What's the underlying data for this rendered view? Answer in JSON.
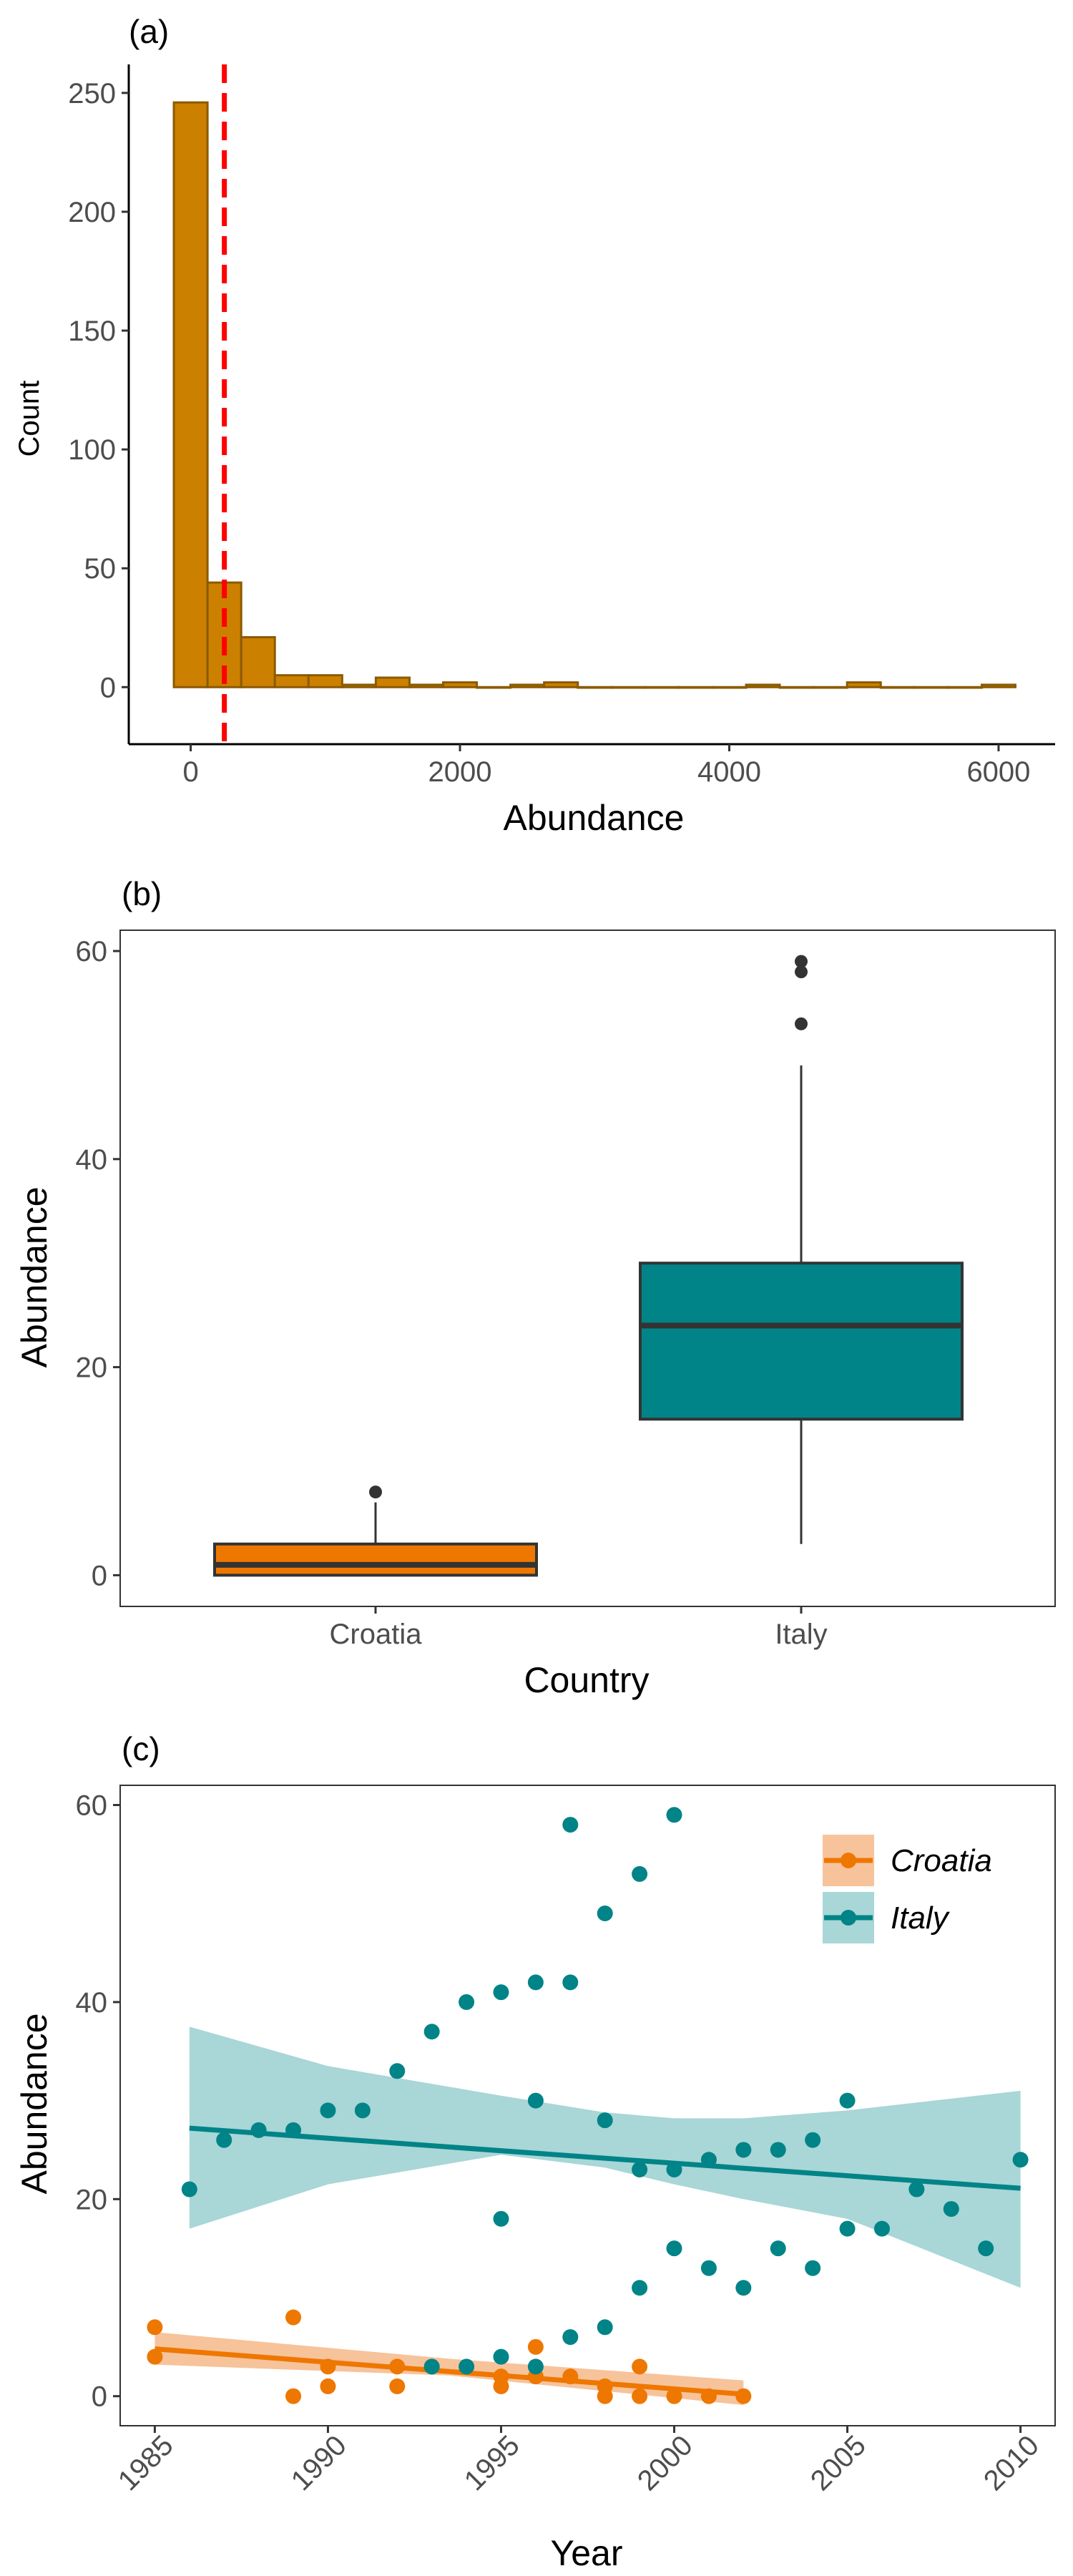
{
  "colors": {
    "hist_fill": "#CC8000",
    "hist_stroke": "#8B5A00",
    "threshold": "#FF0000",
    "croatia": "#EE7700",
    "croatia_band": "#F6B98A",
    "italy": "#008487",
    "italy_band": "#9ACFD0",
    "box_line": "#333333",
    "tick_text": "#4D4D4D"
  },
  "panels": {
    "a": "(a)",
    "b": "(b)",
    "c": "(c)"
  },
  "chart_data": [
    {
      "type": "bar",
      "subtype": "histogram",
      "panel": "(a)",
      "xlabel": "Abundance",
      "ylabel": "Count",
      "bin_width": 250,
      "bin_centers": [
        0,
        250,
        500,
        750,
        1000,
        1250,
        1500,
        1750,
        2000,
        2250,
        2500,
        2750,
        3000,
        3250,
        3500,
        3750,
        4000,
        4250,
        4500,
        4750,
        5000,
        5250,
        5500,
        5750,
        6000
      ],
      "values": [
        246,
        44,
        21,
        5,
        5,
        1,
        4,
        1,
        2,
        0,
        1,
        2,
        0,
        0,
        0,
        0,
        0,
        1,
        0,
        0,
        2,
        0,
        0,
        0,
        1
      ],
      "threshold_line": 250,
      "xlim": [
        -460,
        6420
      ],
      "ylim": [
        -24,
        262
      ],
      "xticks": [
        0,
        2000,
        4000,
        6000
      ],
      "yticks": [
        0,
        50,
        100,
        150,
        200,
        250
      ],
      "grid": false
    },
    {
      "type": "box",
      "panel": "(b)",
      "xlabel": "Country",
      "ylabel": "Abundance",
      "categories": [
        "Croatia",
        "Italy"
      ],
      "boxes": [
        {
          "category": "Croatia",
          "min": 0,
          "q1": 0,
          "median": 1,
          "q3": 3,
          "max": 7,
          "outliers": [
            8
          ]
        },
        {
          "category": "Italy",
          "min": 3,
          "q1": 15,
          "median": 24,
          "q3": 30,
          "max": 49,
          "outliers": [
            53,
            58,
            59
          ]
        }
      ],
      "ylim": [
        -3,
        62
      ],
      "yticks": [
        0,
        20,
        40,
        60
      ],
      "grid": false
    },
    {
      "type": "scatter",
      "panel": "(c)",
      "xlabel": "Year",
      "ylabel": "Abundance",
      "xlim": [
        1984,
        2011
      ],
      "ylim": [
        -3,
        62
      ],
      "xticks": [
        1985,
        1990,
        1995,
        2000,
        2005,
        2010
      ],
      "yticks": [
        0,
        20,
        40,
        60
      ],
      "legend_position": "top-right",
      "grid": false,
      "series": [
        {
          "name": "Croatia",
          "points": [
            [
              1985,
              7
            ],
            [
              1985,
              4
            ],
            [
              1989,
              8
            ],
            [
              1989,
              0
            ],
            [
              1990,
              3
            ],
            [
              1990,
              1
            ],
            [
              1992,
              3
            ],
            [
              1992,
              1
            ],
            [
              1993,
              3
            ],
            [
              1995,
              2
            ],
            [
              1995,
              1
            ],
            [
              1996,
              5
            ],
            [
              1996,
              2
            ],
            [
              1997,
              2
            ],
            [
              1998,
              1
            ],
            [
              1998,
              0
            ],
            [
              1999,
              3
            ],
            [
              1999,
              0
            ],
            [
              2000,
              0
            ],
            [
              2001,
              0
            ],
            [
              2002,
              0
            ]
          ],
          "trend": {
            "x": [
              1985,
              2002
            ],
            "y": [
              4.8,
              0.2
            ]
          },
          "ci_band": {
            "x": [
              1985,
              1993.5,
              2002
            ],
            "lower": [
              3.2,
              2.1,
              -0.9
            ],
            "upper": [
              6.5,
              3.8,
              1.6
            ]
          }
        },
        {
          "name": "Italy",
          "points": [
            [
              1986,
              21
            ],
            [
              1987,
              26
            ],
            [
              1988,
              27
            ],
            [
              1989,
              27
            ],
            [
              1990,
              29
            ],
            [
              1991,
              29
            ],
            [
              1992,
              33
            ],
            [
              1993,
              37
            ],
            [
              1993,
              3
            ],
            [
              1994,
              40
            ],
            [
              1994,
              3
            ],
            [
              1995,
              41
            ],
            [
              1995,
              18
            ],
            [
              1995,
              4
            ],
            [
              1996,
              42
            ],
            [
              1996,
              30
            ],
            [
              1996,
              3
            ],
            [
              1997,
              58
            ],
            [
              1997,
              42
            ],
            [
              1997,
              6
            ],
            [
              1998,
              49
            ],
            [
              1998,
              28
            ],
            [
              1998,
              7
            ],
            [
              1999,
              53
            ],
            [
              1999,
              23
            ],
            [
              1999,
              11
            ],
            [
              2000,
              59
            ],
            [
              2000,
              23
            ],
            [
              2000,
              15
            ],
            [
              2001,
              24
            ],
            [
              2001,
              13
            ],
            [
              2002,
              25
            ],
            [
              2002,
              11
            ],
            [
              2003,
              25
            ],
            [
              2003,
              15
            ],
            [
              2004,
              26
            ],
            [
              2004,
              13
            ],
            [
              2005,
              30
            ],
            [
              2005,
              17
            ],
            [
              2006,
              17
            ],
            [
              2007,
              21
            ],
            [
              2008,
              19
            ],
            [
              2009,
              15
            ],
            [
              2010,
              24
            ]
          ],
          "trend": {
            "x": [
              1986,
              2010
            ],
            "y": [
              27.2,
              21.1
            ]
          },
          "ci_band": {
            "x": [
              1986,
              1990,
              1995,
              1998,
              2000,
              2002,
              2005,
              2010
            ],
            "lower": [
              17,
              21.5,
              24.5,
              23.2,
              21.5,
              20,
              18,
              11
            ],
            "upper": [
              37.5,
              33.5,
              30.5,
              28.8,
              28.2,
              28.2,
              29,
              31
            ]
          }
        }
      ]
    }
  ]
}
